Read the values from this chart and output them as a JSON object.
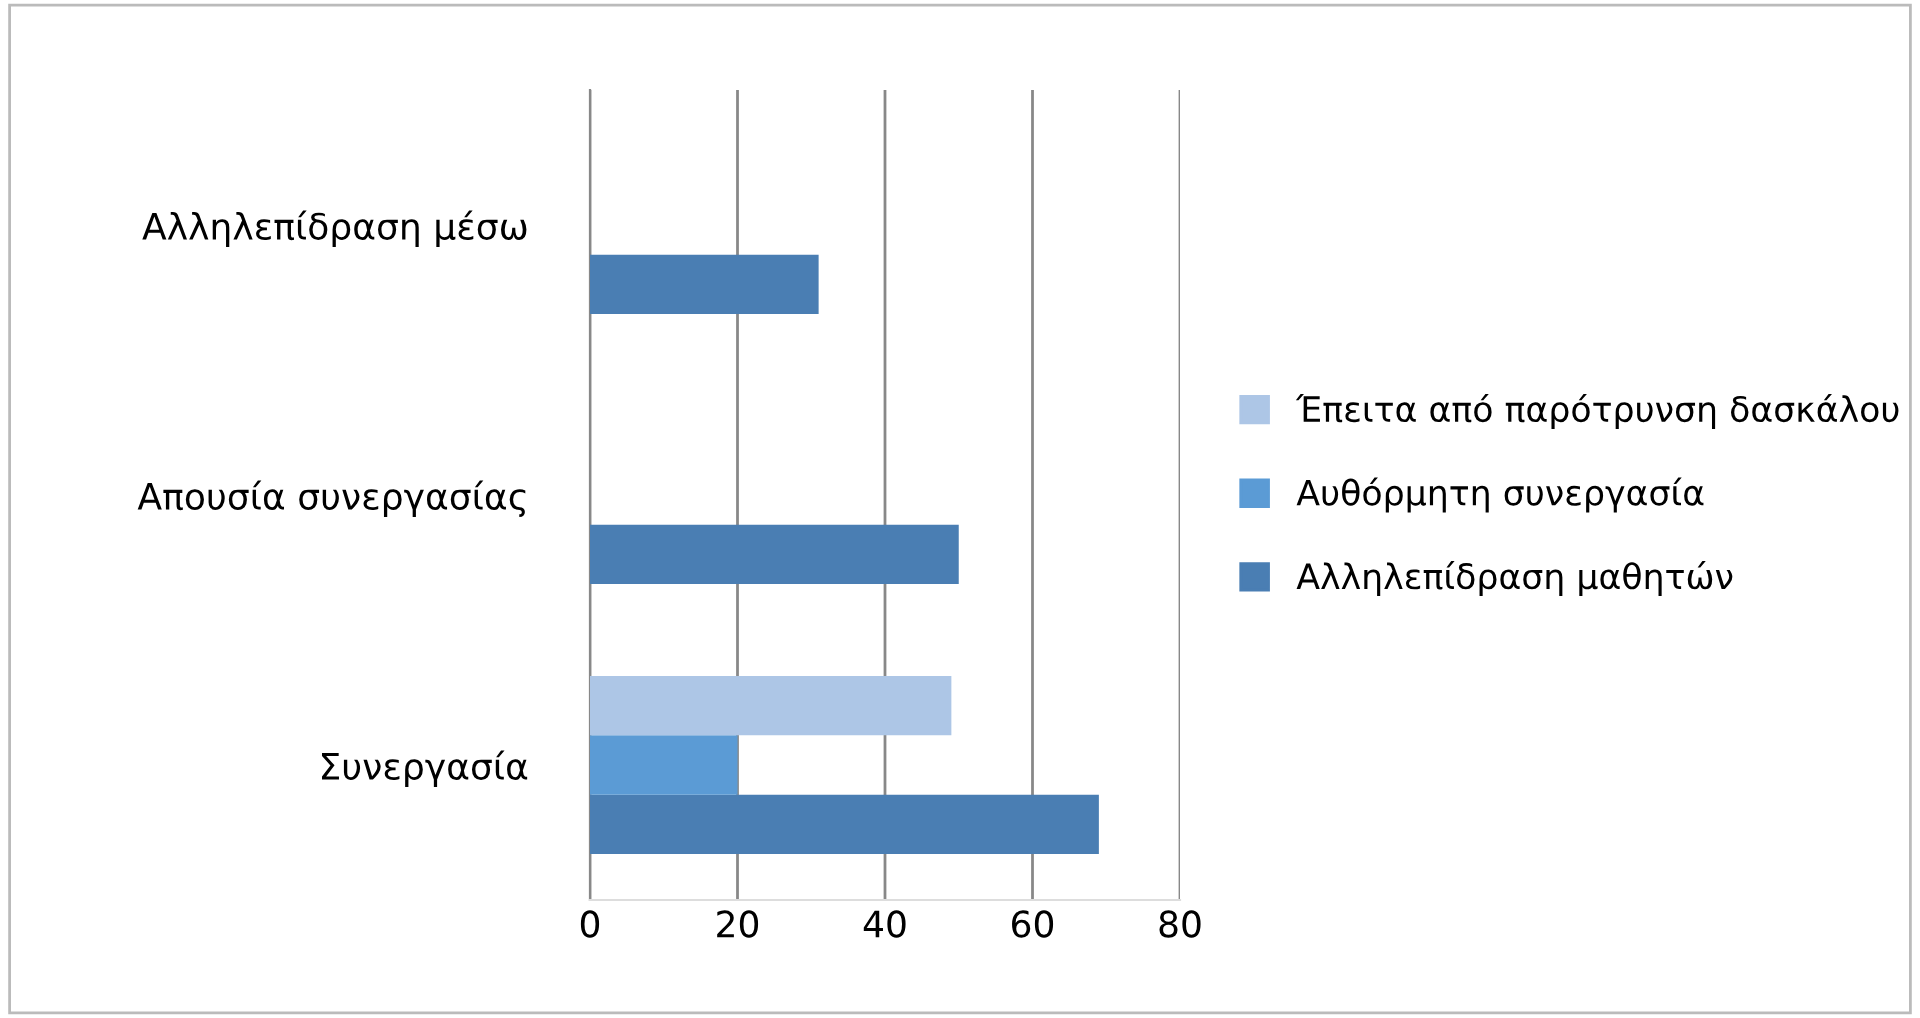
{
  "chart_data": {
    "type": "bar",
    "orientation": "horizontal",
    "categories": [
      "Αλληλεπίδραση μέσω",
      "Απουσία συνεργασίας",
      "Συνεργασία"
    ],
    "series": [
      {
        "name": "Αλληλεπίδραση μαθητών",
        "color": "#4a7eb3",
        "values": [
          31,
          50,
          69
        ]
      },
      {
        "name": "Αυθόρμητη συνεργασία",
        "color": "#5b9bd5",
        "values": [
          null,
          null,
          20
        ]
      },
      {
        "name": "Έπειτα από παρότρυνση δασκάλου",
        "color": "#adc6e6",
        "values": [
          null,
          null,
          49
        ]
      }
    ],
    "xlim": [
      0,
      80
    ],
    "xticks": [
      0,
      20,
      40,
      60,
      80
    ],
    "grid": "x",
    "legend": "right"
  }
}
